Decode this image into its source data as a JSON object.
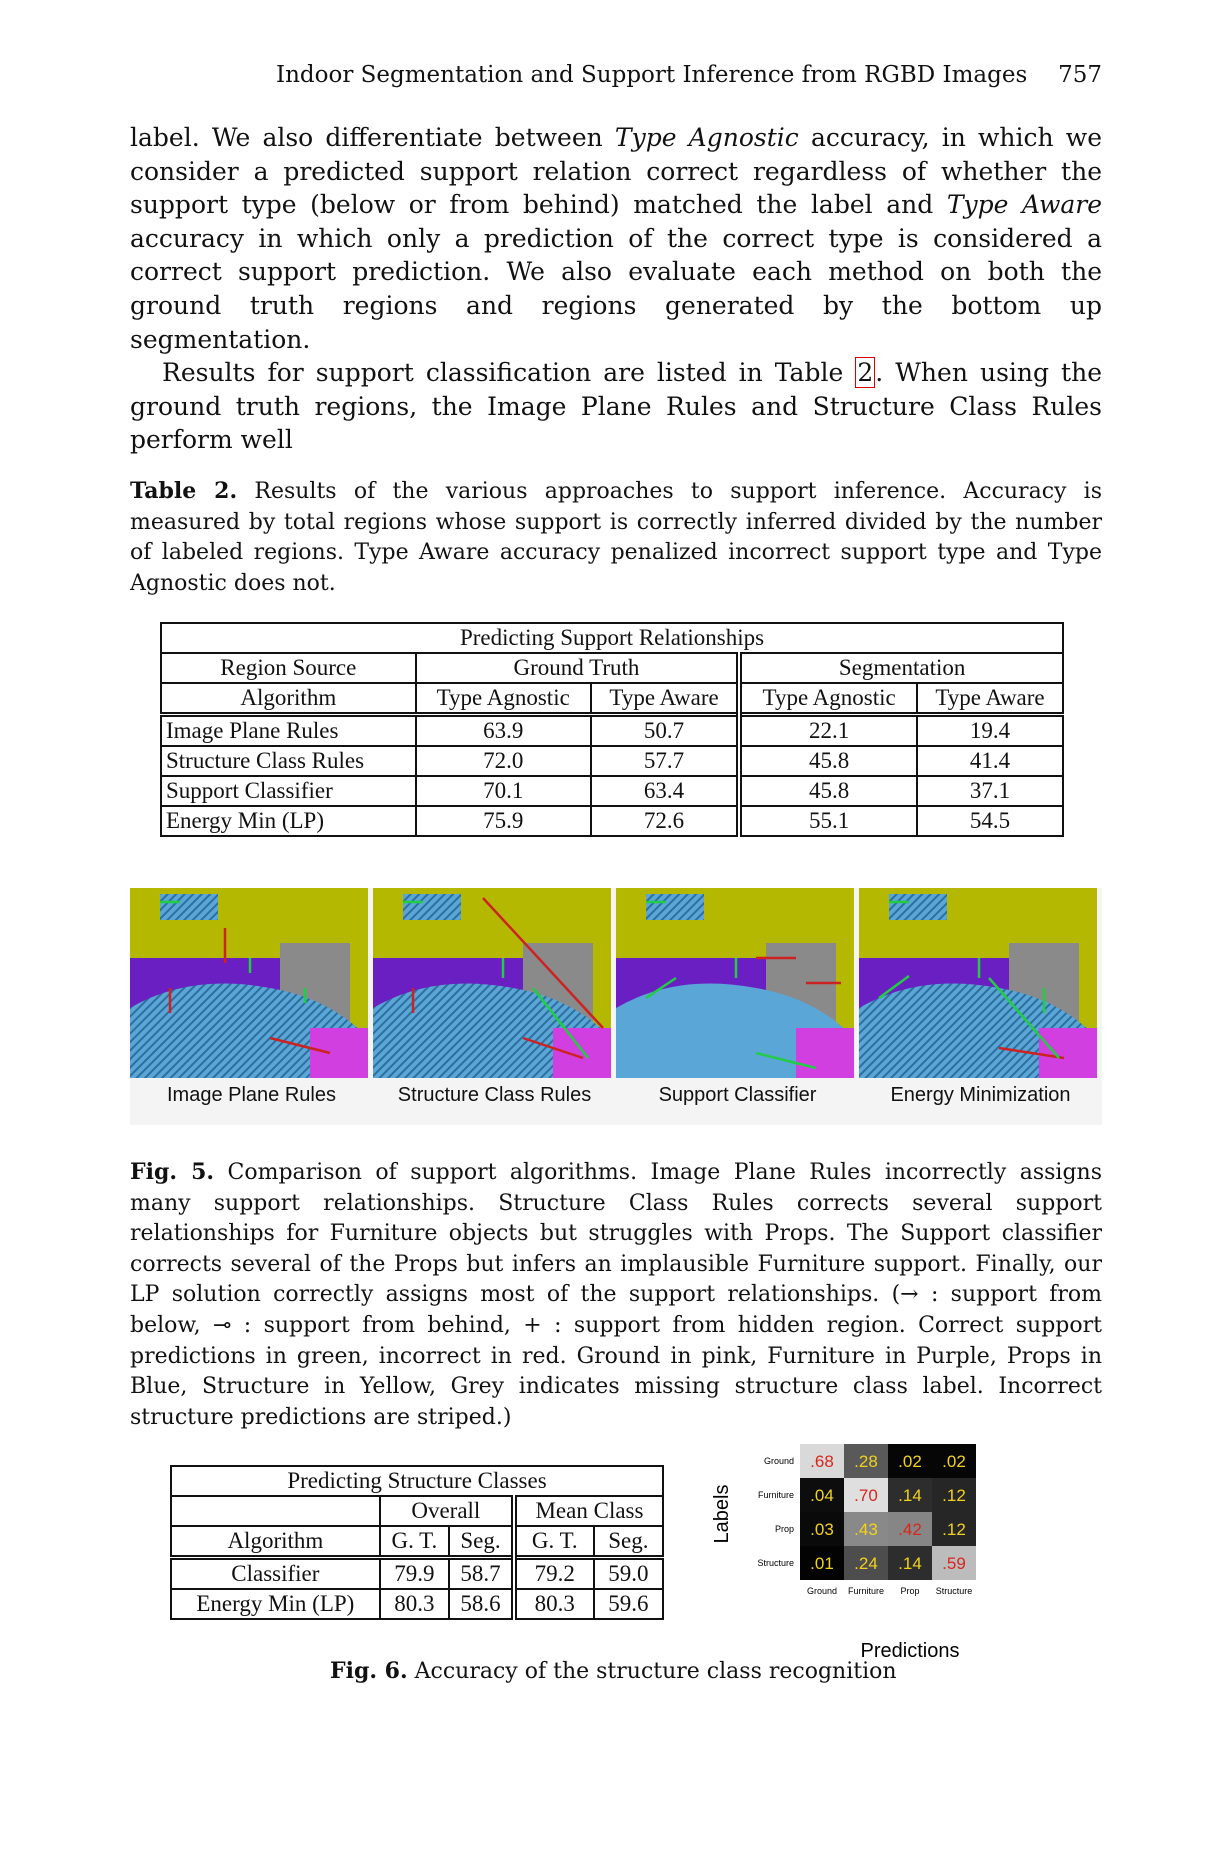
{
  "header": {
    "title": "Indoor Segmentation and Support Inference from RGBD Images",
    "page": "757"
  },
  "body": {
    "p1_a": "label. We also differentiate between ",
    "p1_em1": "Type Agnostic",
    "p1_b": " accuracy, in which we consider a predicted support relation correct regardless of whether the support type (below or from behind) matched the label and ",
    "p1_em2": "Type Aware",
    "p1_c": " accuracy in which only a prediction of the correct type is considered a correct support prediction. We also evaluate each method on both the ground truth regions and regions generated by the bottom up segmentation.",
    "p2_a": "Results for support classification are listed in Table ",
    "p2_ref": "2",
    "p2_b": ". When using the ground truth regions, the Image Plane Rules and Structure Class Rules perform well"
  },
  "table2": {
    "caption_label": "Table 2.",
    "caption_text": " Results of the various approaches to support inference. Accuracy is measured by total regions whose support is correctly inferred divided by the number of labeled regions. Type Aware accuracy penalized incorrect support type and Type Agnostic does not.",
    "title": "Predicting Support Relationships",
    "region_source": "Region Source",
    "ground_truth": "Ground Truth",
    "segmentation": "Segmentation",
    "algorithm": "Algorithm",
    "col_agnostic": "Type Agnostic",
    "col_aware": "Type Aware",
    "rows": [
      {
        "name": "Image Plane Rules",
        "v": [
          "63.9",
          "50.7",
          "22.1",
          "19.4"
        ]
      },
      {
        "name": "Structure Class Rules",
        "v": [
          "72.0",
          "57.7",
          "45.8",
          "41.4"
        ]
      },
      {
        "name": "Support Classifier",
        "v": [
          "70.1",
          "63.4",
          "45.8",
          "37.1"
        ]
      },
      {
        "name": "Energy Min (LP)",
        "v": [
          "75.9",
          "72.6",
          "55.1",
          "54.5"
        ]
      }
    ]
  },
  "fig5": {
    "panels": [
      "Image Plane Rules",
      "Structure Class Rules",
      "Support Classifier",
      "Energy Minimization"
    ],
    "caption_label": "Fig. 5.",
    "caption_text": " Comparison of support algorithms. Image Plane Rules incorrectly assigns many support relationships. Structure Class Rules corrects several support relationships for Furniture objects but struggles with Props. The Support classifier corrects several of the Props but infers an implausible Furniture support. Finally, our LP solution correctly assigns most of the support relationships. (→ : support from below, ⊸ : support from behind, + : support from hidden region. Correct support predictions in green, incorrect in red. Ground in pink, Furniture in Purple, Props in Blue, Structure in Yellow, Grey indicates missing structure class label. Incorrect structure predictions are striped.)",
    "colors": {
      "structure": "#b5b800",
      "furniture": "#6a1fc2",
      "ground": "#d23fe0",
      "props": "#5aa6d6",
      "correct": "#22cc44",
      "incorrect": "#cc2222"
    }
  },
  "table_struct": {
    "title": "Predicting Structure Classes",
    "overall": "Overall",
    "mean_class": "Mean Class",
    "algorithm": "Algorithm",
    "gt": "G. T.",
    "seg": "Seg.",
    "rows": [
      {
        "name": "Classifier",
        "v": [
          "79.9",
          "58.7",
          "79.2",
          "59.0"
        ]
      },
      {
        "name": "Energy Min (LP)",
        "v": [
          "80.3",
          "58.6",
          "80.3",
          "59.6"
        ]
      }
    ]
  },
  "fig6": {
    "caption_label": "Fig. 6.",
    "caption_text": " Accuracy of the structure class recognition"
  },
  "chart_data": {
    "type": "heatmap",
    "title": "",
    "xlabel": "Predictions",
    "ylabel": "Labels",
    "rows": [
      "Ground",
      "Furniture",
      "Prop",
      "Structure"
    ],
    "cols": [
      "Ground",
      "Furniture",
      "Prop",
      "Structure"
    ],
    "values": [
      [
        0.68,
        0.28,
        0.02,
        0.02
      ],
      [
        0.04,
        0.7,
        0.14,
        0.12
      ],
      [
        0.03,
        0.43,
        0.42,
        0.12
      ],
      [
        0.01,
        0.24,
        0.14,
        0.59
      ]
    ],
    "labels": [
      [
        ".68",
        ".28",
        ".02",
        ".02"
      ],
      [
        ".04",
        ".70",
        ".14",
        ".12"
      ],
      [
        ".03",
        ".43",
        ".42",
        ".12"
      ],
      [
        ".01",
        ".24",
        ".14",
        ".59"
      ]
    ],
    "colors": {
      "offdiag_text": "#f2d21a",
      "diag_text": "#d8261c"
    }
  }
}
